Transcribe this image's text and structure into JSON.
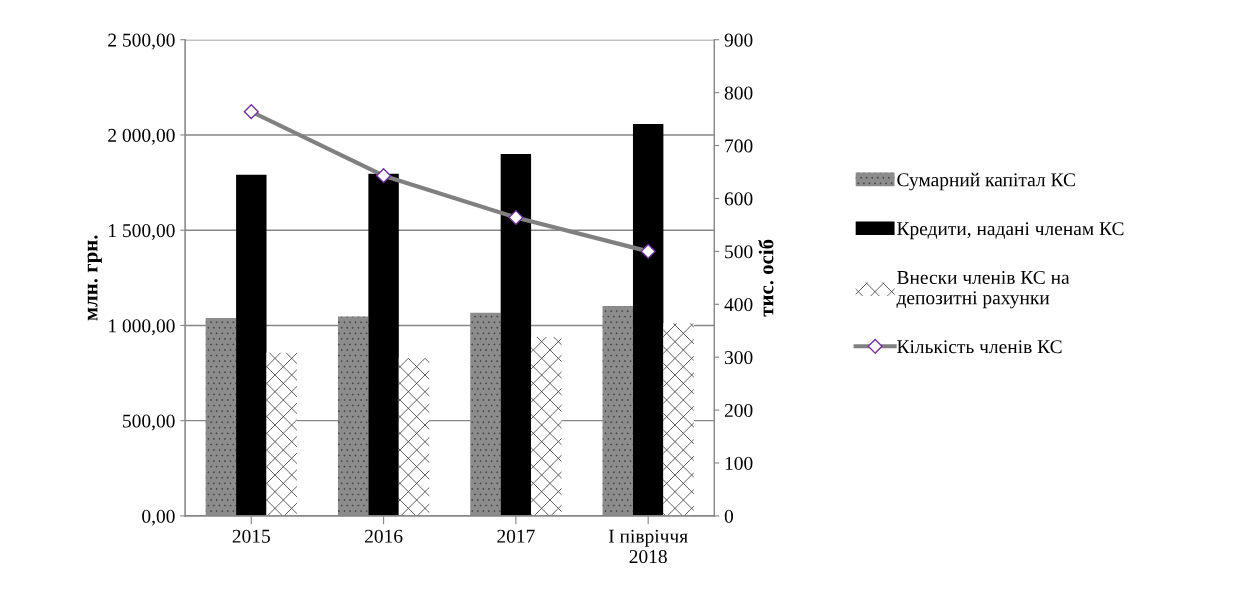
{
  "chart_data": {
    "type": "bar",
    "ylabel": "млн. грн.",
    "y2label": "тис. осіб",
    "categories": [
      "2015",
      "2016",
      "2017",
      "І півріччя\n2018"
    ],
    "series": [
      {
        "name": "Сумарний капітал КС",
        "color": "#8c8c8c",
        "values": [
          1039,
          1047,
          1066,
          1102
        ]
      },
      {
        "name": "Кредити, надані членам КС",
        "color": "#000000",
        "values": [
          1791,
          1797,
          1900,
          2057
        ]
      },
      {
        "name": "Внески членів КС на\nдепозитні рахунки",
        "color": "#ffffff",
        "values": [
          856,
          828,
          939,
          1011
        ]
      },
      {
        "name": "Кількість членів КС",
        "type": "line",
        "axis": "y2",
        "color": "#808080",
        "values": [
          764,
          643,
          564,
          500
        ]
      }
    ],
    "ylim": [
      0,
      2500
    ],
    "yticks": [
      {
        "value": 0,
        "label": "0,00"
      },
      {
        "value": 500,
        "label": "500,00"
      },
      {
        "value": 1000,
        "label": "1 000,00"
      },
      {
        "value": 1500,
        "label": "1 500,00"
      },
      {
        "value": 2000,
        "label": "2 000,00"
      },
      {
        "value": 2500,
        "label": "2 500,00"
      }
    ],
    "y2lim": [
      0,
      900
    ],
    "y2ticks": [
      0,
      100,
      200,
      300,
      400,
      500,
      600,
      700,
      800,
      900
    ],
    "grid": "y",
    "legend": "right",
    "marker": "diamond"
  }
}
